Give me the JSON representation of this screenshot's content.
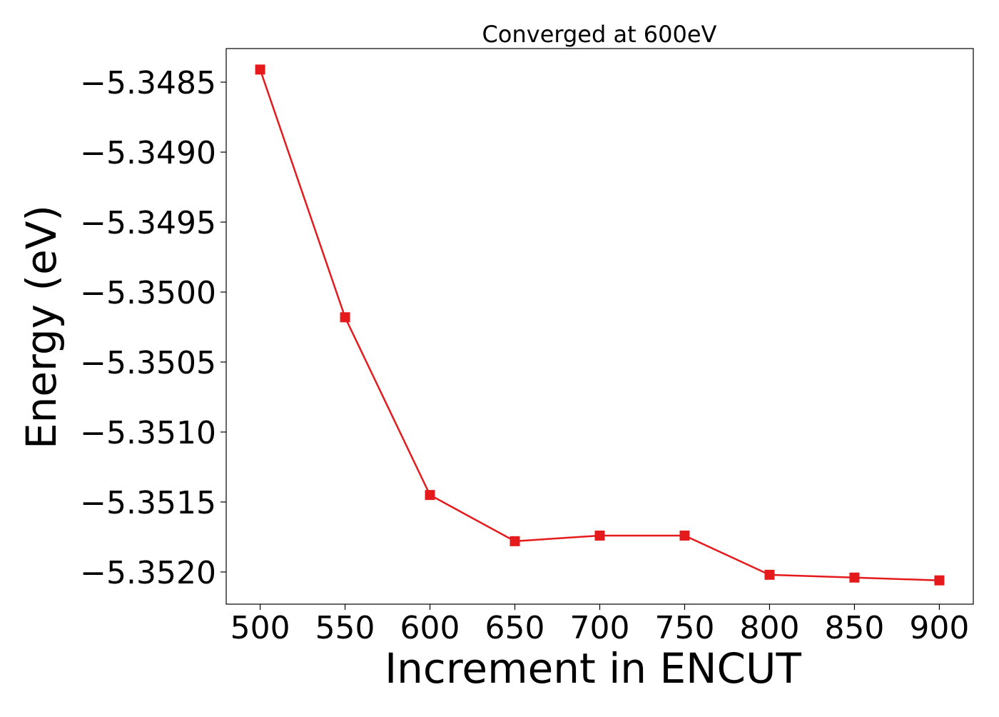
{
  "chart_data": {
    "type": "line",
    "title": "Converged at 600eV",
    "xlabel": "Increment in ENCUT",
    "ylabel": "Energy (eV)",
    "x": [
      500,
      550,
      600,
      650,
      700,
      750,
      800,
      850,
      900
    ],
    "series": [
      {
        "values": [
          -5.34841,
          -5.35018,
          -5.35145,
          -5.35178,
          -5.35174,
          -5.35174,
          -5.35202,
          -5.35204,
          -5.35206
        ],
        "color": "#e41a1c",
        "marker": "square"
      }
    ],
    "xticks": [
      500,
      550,
      600,
      650,
      700,
      750,
      800,
      850,
      900
    ],
    "xtick_labels": [
      "500",
      "550",
      "600",
      "650",
      "700",
      "750",
      "800",
      "850",
      "900"
    ],
    "yticks": [
      -5.3485,
      -5.349,
      -5.3495,
      -5.35,
      -5.3505,
      -5.351,
      -5.3515,
      -5.352
    ],
    "ytick_labels": [
      "−5.3485",
      "−5.3490",
      "−5.3495",
      "−5.3500",
      "−5.3505",
      "−5.3510",
      "−5.3515",
      "−5.3520"
    ],
    "xlim": [
      480,
      920
    ],
    "ylim": [
      -5.35223,
      -5.34826
    ],
    "grid": false,
    "legend": "none"
  }
}
